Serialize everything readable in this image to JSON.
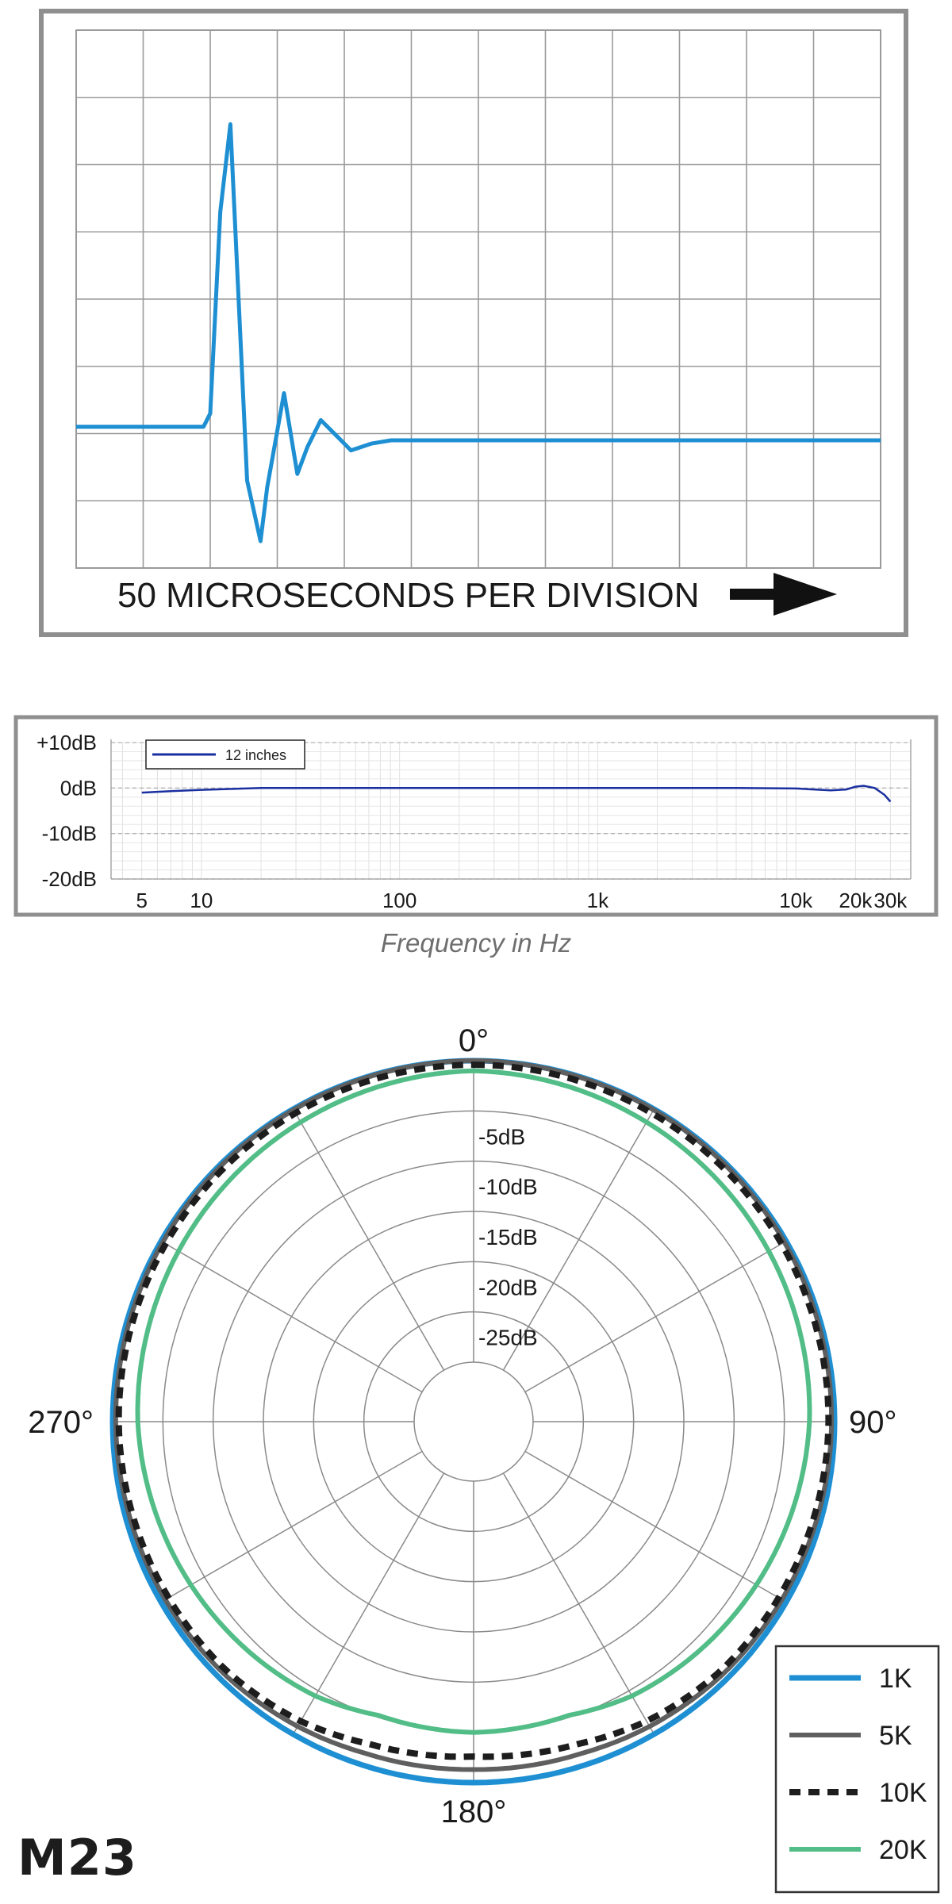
{
  "colors": {
    "impulse": "#1e8fd2",
    "freq_line": "#1a2fa0",
    "c1k": "#1e8fd2",
    "c5k": "#5f5f5f",
    "c10k": "#1d1d1d",
    "c20k": "#52bd87",
    "grid": "#9a9a9a",
    "frame": "#8f8f8f"
  },
  "model": "M23",
  "chart_data": [
    {
      "type": "line",
      "name": "impulse-response",
      "xlabel": "50 MICROSECONDS PER DIVISION",
      "divisions": {
        "x": 12,
        "y": 8
      },
      "grid": true,
      "xlim": [
        0,
        12
      ],
      "ylim": [
        0,
        8
      ],
      "x": [
        0,
        1.9,
        2.0,
        2.15,
        2.3,
        2.55,
        2.75,
        2.85,
        3.1,
        3.3,
        3.45,
        3.65,
        3.9,
        4.1,
        4.4,
        4.7,
        5.0,
        12.0
      ],
      "y": [
        2.1,
        2.1,
        2.3,
        5.3,
        6.6,
        1.3,
        0.4,
        1.2,
        2.6,
        1.4,
        1.8,
        2.2,
        1.95,
        1.75,
        1.85,
        1.9,
        1.9,
        1.9
      ]
    },
    {
      "type": "line",
      "name": "frequency-response",
      "xlabel": "Frequency in Hz",
      "xscale": "log",
      "xlim": [
        3.5,
        38000
      ],
      "ylim": [
        -20,
        10
      ],
      "yticks": [
        "+10dB",
        "0dB",
        "-10dB",
        "-20dB"
      ],
      "ytick_values": [
        10,
        0,
        -10,
        -20
      ],
      "xticks": [
        "5",
        "10",
        "100",
        "1k",
        "10k",
        "20k",
        "30k"
      ],
      "xtick_values": [
        5,
        10,
        100,
        1000,
        10000,
        20000,
        30000
      ],
      "legend": "top-left",
      "grid": true,
      "series": [
        {
          "name": "12 inches",
          "x": [
            5,
            7,
            10,
            15,
            20,
            50,
            100,
            1000,
            5000,
            10000,
            15000,
            18000,
            20000,
            22000,
            25000,
            28000,
            30000
          ],
          "y": [
            -1.0,
            -0.7,
            -0.4,
            -0.15,
            0,
            0,
            0,
            0,
            0,
            -0.1,
            -0.5,
            -0.3,
            0.3,
            0.5,
            0,
            -1.5,
            -3.0
          ]
        }
      ]
    },
    {
      "type": "polar",
      "name": "polar-pattern",
      "angle_labels": [
        "0°",
        "90°",
        "180°",
        "270°"
      ],
      "ring_labels": [
        "-5dB",
        "-10dB",
        "-15dB",
        "-20dB",
        "-25dB"
      ],
      "ring_values": [
        -5,
        -10,
        -15,
        -20,
        -25
      ],
      "rlim": [
        -30,
        0
      ],
      "legend": "bottom-right",
      "series": [
        {
          "name": "1K",
          "angles": [
            0,
            90,
            135,
            150,
            165,
            180,
            195,
            210,
            225,
            270
          ],
          "values": [
            0,
            0,
            0,
            0,
            0,
            0,
            0,
            0,
            0,
            0
          ]
        },
        {
          "name": "5K",
          "angles": [
            0,
            90,
            135,
            150,
            162,
            180,
            198,
            210,
            225,
            270
          ],
          "values": [
            0,
            -0.3,
            -0.6,
            -0.9,
            -1.2,
            -1.3,
            -1.2,
            -0.9,
            -0.6,
            -0.3
          ]
        },
        {
          "name": "10K",
          "angles": [
            0,
            90,
            135,
            150,
            162,
            180,
            198,
            210,
            225,
            270
          ],
          "values": [
            -0.4,
            -0.6,
            -1.0,
            -1.5,
            -2.2,
            -2.6,
            -2.2,
            -1.5,
            -1.0,
            -0.6
          ]
        },
        {
          "name": "20K",
          "angles": [
            0,
            90,
            135,
            150,
            162,
            180,
            198,
            210,
            225,
            270
          ],
          "values": [
            -1.0,
            -2.5,
            -3.9,
            -4.4,
            -5.2,
            -5.0,
            -5.2,
            -4.4,
            -3.9,
            -2.5
          ]
        }
      ]
    }
  ]
}
